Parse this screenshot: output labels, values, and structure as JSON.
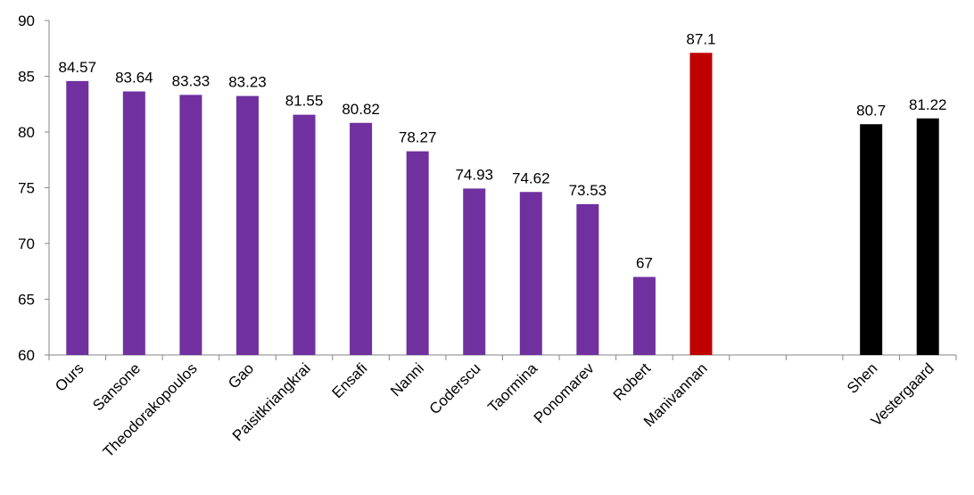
{
  "chart_data": {
    "type": "bar",
    "title": "",
    "xlabel": "",
    "ylabel": "",
    "ylim": [
      60,
      90
    ],
    "yticks": [
      60,
      65,
      70,
      75,
      80,
      85,
      90
    ],
    "grid": false,
    "legend": "none",
    "categories": [
      "Ours",
      "Sansone",
      "Theodorakopoulos",
      "Gao",
      "Paisitkriangkrai",
      "Ensafi",
      "Nanni",
      "Coderscu",
      "Taormina",
      "Ponomarev",
      "Robert",
      "Manivannan",
      "",
      "",
      "Shen",
      "Vestergaard"
    ],
    "values": [
      84.57,
      83.64,
      83.33,
      83.23,
      81.55,
      80.82,
      78.27,
      74.93,
      74.62,
      73.53,
      67,
      87.1,
      null,
      null,
      80.7,
      81.22
    ],
    "value_labels": [
      "84.57",
      "83.64",
      "83.33",
      "83.23",
      "81.55",
      "80.82",
      "78.27",
      "74.93",
      "74.62",
      "73.53",
      "67",
      "87.1",
      "",
      "",
      "80.7",
      "81.22"
    ],
    "bar_colors": [
      "#7030a0",
      "#7030a0",
      "#7030a0",
      "#7030a0",
      "#7030a0",
      "#7030a0",
      "#7030a0",
      "#7030a0",
      "#7030a0",
      "#7030a0",
      "#7030a0",
      "#c00000",
      "",
      "",
      "#000000",
      "#000000"
    ],
    "axis_color": "#868686"
  }
}
